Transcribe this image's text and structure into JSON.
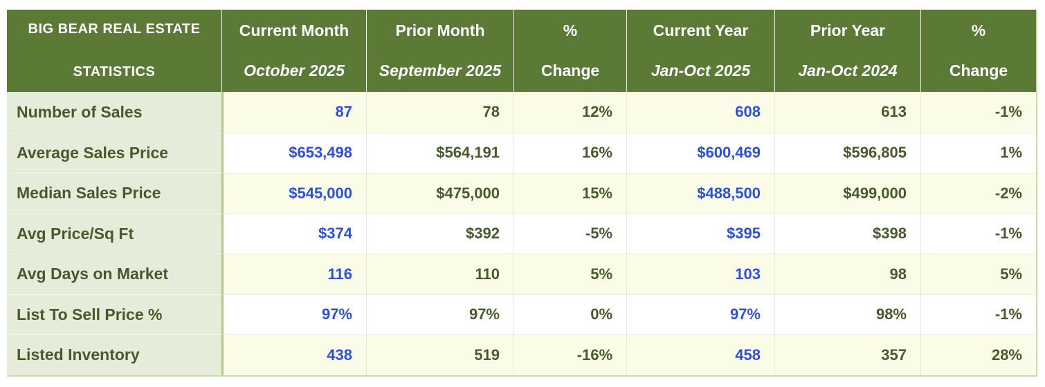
{
  "colors": {
    "header_green": "#5a7a36",
    "label_column_bg": "#e5ecda",
    "row_cream_bg": "#fbfce8",
    "row_white_bg": "#ffffff",
    "text_dark_green": "#465a2b",
    "value_blue": "#2b4fe0",
    "divider_pale_green": "#b2c98b",
    "outer_border_green": "#ccdaab"
  },
  "table": {
    "corner": {
      "line1": "BIG BEAR REAL ESTATE",
      "line2": "STATISTICS"
    },
    "headers": [
      {
        "line1": "Current Month",
        "line2": "October 2025"
      },
      {
        "line1": "Prior Month",
        "line2": "September 2025"
      },
      {
        "line1": "%",
        "line2": "Change"
      },
      {
        "line1": "Current Year",
        "line2": "Jan-Oct 2025"
      },
      {
        "line1": "Prior Year",
        "line2": "Jan-Oct 2024"
      },
      {
        "line1": "%",
        "line2": "Change"
      }
    ],
    "rows": [
      {
        "label": "Number of Sales",
        "current_month": "87",
        "prior_month": "78",
        "month_change": "12%",
        "current_year": "608",
        "prior_year": "613",
        "year_change": "-1%"
      },
      {
        "label": "Average Sales Price",
        "current_month": "$653,498",
        "prior_month": "$564,191",
        "month_change": "16%",
        "current_year": "$600,469",
        "prior_year": "$596,805",
        "year_change": "1%"
      },
      {
        "label": "Median Sales Price",
        "current_month": "$545,000",
        "prior_month": "$475,000",
        "month_change": "15%",
        "current_year": "$488,500",
        "prior_year": "$499,000",
        "year_change": "-2%"
      },
      {
        "label": "Avg Price/Sq Ft",
        "current_month": "$374",
        "prior_month": "$392",
        "month_change": "-5%",
        "current_year": "$395",
        "prior_year": "$398",
        "year_change": "-1%"
      },
      {
        "label": "Avg Days on Market",
        "current_month": "116",
        "prior_month": "110",
        "month_change": "5%",
        "current_year": "103",
        "prior_year": "98",
        "year_change": "5%"
      },
      {
        "label": "List To Sell Price %",
        "current_month": "97%",
        "prior_month": "97%",
        "month_change": "0%",
        "current_year": "97%",
        "prior_year": "98%",
        "year_change": "-1%"
      },
      {
        "label": "Listed Inventory",
        "current_month": "438",
        "prior_month": "519",
        "month_change": "-16%",
        "current_year": "458",
        "prior_year": "357",
        "year_change": "28%"
      }
    ]
  },
  "chart_data": {
    "type": "table",
    "title": "BIG BEAR REAL ESTATE STATISTICS",
    "columns": [
      "",
      "Current Month October 2025",
      "Prior Month September 2025",
      "% Change",
      "Current Year Jan-Oct 2025",
      "Prior Year Jan-Oct 2024",
      "% Change"
    ],
    "rows": [
      [
        "Number of Sales",
        "87",
        "78",
        "12%",
        "608",
        "613",
        "-1%"
      ],
      [
        "Average Sales Price",
        "$653,498",
        "$564,191",
        "16%",
        "$600,469",
        "$596,805",
        "1%"
      ],
      [
        "Median Sales Price",
        "$545,000",
        "$475,000",
        "15%",
        "$488,500",
        "$499,000",
        "-2%"
      ],
      [
        "Avg Price/Sq Ft",
        "$374",
        "$392",
        "-5%",
        "$395",
        "$398",
        "-1%"
      ],
      [
        "Avg Days on Market",
        "116",
        "110",
        "5%",
        "103",
        "98",
        "5%"
      ],
      [
        "List To Sell Price %",
        "97%",
        "97%",
        "0%",
        "97%",
        "98%",
        "-1%"
      ],
      [
        "Listed Inventory",
        "438",
        "519",
        "-16%",
        "458",
        "357",
        "28%"
      ]
    ]
  }
}
